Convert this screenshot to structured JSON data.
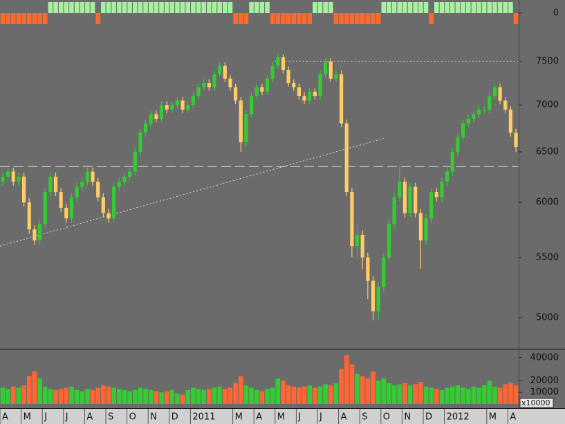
{
  "chart_data": [
    {
      "type": "bar",
      "values": [
        -1,
        -1,
        -1,
        -1,
        -1,
        -1,
        -1,
        -1,
        -1,
        1,
        1,
        1,
        1,
        1,
        1,
        1,
        1,
        1,
        -1,
        1,
        1,
        1,
        1,
        1,
        1,
        1,
        1,
        1,
        1,
        1,
        1,
        1,
        1,
        1,
        1,
        1,
        1,
        1,
        1,
        1,
        1,
        1,
        1,
        1,
        -1,
        -1,
        -1,
        1,
        1,
        1,
        1,
        -1,
        -1,
        -1,
        -1,
        -1,
        -1,
        -1,
        -1,
        1,
        1,
        1,
        1,
        -1,
        -1,
        -1,
        -1,
        -1,
        -1,
        -1,
        -1,
        -1,
        1,
        1,
        1,
        1,
        1,
        1,
        1,
        1,
        1,
        -1,
        1,
        1,
        1,
        1,
        1,
        1,
        1,
        1,
        1,
        1,
        1,
        1,
        1,
        1,
        1,
        -1
      ],
      "up_color": "#a8f0a0",
      "down_color": "#ff6a2a",
      "ylim": [
        -1,
        1
      ],
      "yticks": [
        0
      ]
    },
    {
      "type": "candlestick",
      "categories": [
        "A",
        null,
        null,
        null,
        "M",
        null,
        null,
        null,
        "J",
        null,
        null,
        null,
        "J",
        null,
        null,
        null,
        "A",
        null,
        null,
        null,
        "S",
        null,
        null,
        null,
        "O",
        null,
        null,
        null,
        "N",
        null,
        null,
        null,
        "D",
        null,
        null,
        null,
        "2011",
        null,
        null,
        null,
        null,
        null,
        null,
        null,
        "M",
        null,
        null,
        null,
        "A",
        null,
        null,
        null,
        "M",
        null,
        null,
        null,
        "J",
        null,
        null,
        null,
        "J",
        null,
        null,
        null,
        "A",
        null,
        null,
        null,
        "S",
        null,
        null,
        null,
        "O",
        null,
        null,
        null,
        "N",
        null,
        null,
        null,
        "D",
        null,
        null,
        null,
        "2012",
        null,
        null,
        null,
        null,
        null,
        null,
        null,
        "M",
        null,
        null,
        null,
        "A",
        null
      ],
      "open": [
        6200,
        6250,
        6300,
        6200,
        6250,
        6000,
        5750,
        5650,
        5800,
        6100,
        6250,
        6100,
        5950,
        5850,
        6050,
        6150,
        6200,
        6300,
        6200,
        6050,
        5900,
        5850,
        6150,
        6200,
        6250,
        6300,
        6500,
        6700,
        6800,
        6900,
        6850,
        7000,
        6950,
        7000,
        7050,
        6950,
        7000,
        7100,
        7200,
        7250,
        7200,
        7350,
        7450,
        7300,
        7200,
        7050,
        6600,
        6900,
        7100,
        7200,
        7150,
        7300,
        7450,
        7550,
        7400,
        7250,
        7200,
        7100,
        7050,
        7150,
        7100,
        7350,
        7500,
        7300,
        7350,
        6800,
        6100,
        5600,
        5700,
        5500,
        5300,
        5050,
        5250,
        5500,
        5800,
        6050,
        6200,
        5900,
        6150,
        5900,
        5650,
        5850,
        6100,
        6050,
        6200,
        6300,
        6500,
        6650,
        6800,
        6850,
        6900,
        6950,
        6950,
        7100,
        7200,
        7050,
        6950,
        6700
      ],
      "high": [
        6290,
        6340,
        6340,
        6290,
        6290,
        6040,
        5790,
        5840,
        6140,
        6290,
        6290,
        6140,
        5990,
        6090,
        6190,
        6240,
        6340,
        6340,
        6240,
        6090,
        5940,
        6190,
        6240,
        6290,
        6340,
        6540,
        6740,
        6840,
        6940,
        6940,
        7040,
        7040,
        7040,
        7090,
        7090,
        7040,
        7140,
        7240,
        7290,
        7290,
        7390,
        7490,
        7490,
        7340,
        7240,
        7090,
        6940,
        7140,
        7240,
        7240,
        7340,
        7490,
        7600,
        7590,
        7440,
        7290,
        7240,
        7140,
        7190,
        7190,
        7390,
        7540,
        7540,
        7390,
        7390,
        6840,
        6140,
        5800,
        5740,
        5540,
        5340,
        5290,
        5540,
        5840,
        6090,
        6350,
        6240,
        6190,
        6190,
        5940,
        5890,
        6140,
        6140,
        6240,
        6340,
        6540,
        6690,
        6840,
        6890,
        6940,
        6990,
        6990,
        7140,
        7240,
        7240,
        7090,
        6990,
        6740
      ],
      "low": [
        6160,
        6210,
        6160,
        6160,
        5960,
        5710,
        5610,
        5610,
        5760,
        6060,
        6060,
        5910,
        5810,
        5810,
        6010,
        6110,
        6160,
        6160,
        6010,
        5860,
        5810,
        5810,
        6110,
        6160,
        6210,
        6260,
        6460,
        6660,
        6760,
        6810,
        6810,
        6910,
        6910,
        6960,
        6910,
        6910,
        6960,
        7060,
        7160,
        7160,
        7160,
        7310,
        7260,
        7160,
        7010,
        6500,
        6560,
        6860,
        7060,
        7110,
        7110,
        7260,
        7410,
        7360,
        7210,
        7160,
        7060,
        7010,
        7010,
        7060,
        7060,
        7310,
        7260,
        7260,
        6760,
        6060,
        5500,
        5500,
        5400,
        5150,
        4980,
        4980,
        5210,
        5460,
        5760,
        6010,
        5860,
        5860,
        5860,
        5400,
        5610,
        5810,
        6010,
        6010,
        6160,
        6260,
        6460,
        6610,
        6760,
        6810,
        6860,
        6910,
        6910,
        7060,
        7010,
        6910,
        6660,
        6500
      ],
      "close": [
        6250,
        6300,
        6200,
        6250,
        6000,
        5750,
        5650,
        5800,
        6100,
        6250,
        6100,
        5950,
        5850,
        6050,
        6150,
        6200,
        6300,
        6200,
        6050,
        5900,
        5850,
        6150,
        6200,
        6250,
        6300,
        6500,
        6700,
        6800,
        6900,
        6850,
        7000,
        6950,
        7000,
        7050,
        6950,
        7000,
        7100,
        7200,
        7250,
        7200,
        7350,
        7450,
        7300,
        7200,
        7050,
        6600,
        6900,
        7100,
        7200,
        7150,
        7300,
        7450,
        7550,
        7400,
        7250,
        7200,
        7100,
        7050,
        7150,
        7100,
        7350,
        7500,
        7300,
        7350,
        6800,
        6100,
        5600,
        5700,
        5500,
        5300,
        5050,
        5250,
        5500,
        5800,
        6050,
        6200,
        5900,
        6150,
        5900,
        5650,
        5850,
        6100,
        6050,
        6200,
        6300,
        6500,
        6650,
        6800,
        6850,
        6900,
        6950,
        6950,
        7100,
        7200,
        7050,
        6950,
        6700,
        6550
      ],
      "up_color": "#33cc33",
      "down_color": "#ffcc66",
      "ylim": [
        4760,
        7956
      ],
      "log_scale": true,
      "yticks": [
        5000,
        5500,
        6000,
        6500,
        7000,
        7500
      ],
      "reference_lines": [
        {
          "value": 6350,
          "style": "dashed",
          "start_index": 0
        },
        {
          "value": 7500,
          "style": "dotted",
          "start_index": 52
        }
      ],
      "trend_line": {
        "start": [
          0,
          5600
        ],
        "end": [
          72,
          6640
        ]
      }
    },
    {
      "type": "bar",
      "values": [
        14000,
        13000,
        15000,
        14000,
        16000,
        24000,
        28000,
        22000,
        15000,
        13000,
        12000,
        13000,
        14000,
        15000,
        12000,
        11000,
        13000,
        12000,
        14000,
        16000,
        15000,
        14000,
        13000,
        12000,
        11000,
        12000,
        14000,
        13000,
        12000,
        11000,
        10000,
        11000,
        12000,
        9000,
        8000,
        12000,
        14000,
        13000,
        12000,
        13000,
        14000,
        15000,
        13000,
        14000,
        18000,
        24000,
        16000,
        14000,
        12000,
        11000,
        13000,
        14000,
        22000,
        20000,
        16000,
        15000,
        14000,
        15000,
        16000,
        14000,
        15000,
        17000,
        16000,
        18000,
        30000,
        42000,
        34000,
        26000,
        24000,
        22000,
        28000,
        20000,
        22000,
        18000,
        16000,
        17000,
        18000,
        16000,
        17000,
        19000,
        15000,
        14000,
        13000,
        12000,
        14000,
        15000,
        16000,
        14000,
        13000,
        15000,
        14000,
        16000,
        20000,
        15000,
        14000,
        17000,
        18000,
        16000
      ],
      "up_color": "#33cc33",
      "down_color": "#ff6633",
      "ylim": [
        0,
        47000
      ],
      "yticks": [
        10000,
        20000,
        40000
      ],
      "unit_label": "x10000"
    }
  ]
}
